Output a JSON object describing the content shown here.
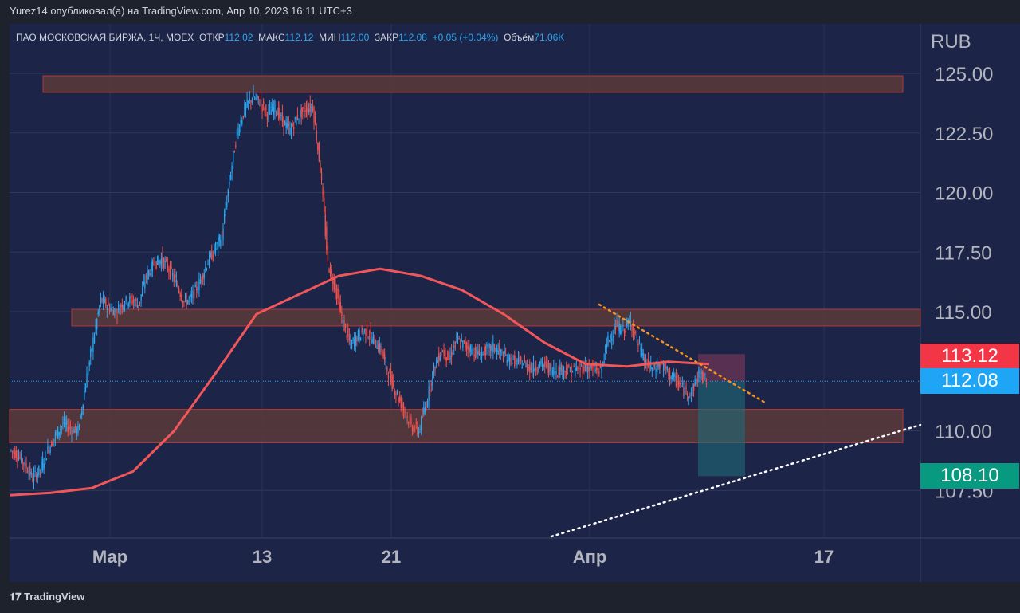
{
  "header": {
    "published": "Yurez14 опубликовал(а) на TradingView.com, Апр 10, 2023 16:11 UTC+3"
  },
  "legend": {
    "symbol": "ПАО МОСКОВСКАЯ БИРЖА, 1Ч, MOEX",
    "open_label": "ОТКР",
    "open": "112.02",
    "high_label": "МАКС",
    "high": "112.12",
    "low_label": "МИН",
    "low": "112.00",
    "close_label": "ЗАКР",
    "close": "112.08",
    "change": "+0.05 (+0.04%)",
    "volume_label": "Объём",
    "volume": "71.06K"
  },
  "footer": {
    "brand": "TradingView"
  },
  "colors": {
    "background": "#1e222d",
    "pane": "#1c2547",
    "up": "#2ca6f0",
    "down": "#ef5350",
    "ma": "#f0565a",
    "zone": "#5a3a3a",
    "trend_orange": "#f7931a",
    "trend_white": "#ffffff",
    "current_price": "#1fa5f5",
    "ma_label": "#f23645",
    "target_label": "#089981"
  },
  "chart_data": {
    "type": "candlestick",
    "currency": "RUB",
    "ylim": [
      106.4,
      126.5
    ],
    "y_ticks": [
      "125.00",
      "122.50",
      "120.00",
      "117.50",
      "115.00",
      "110.00",
      "107.50"
    ],
    "x_ticks": [
      "Мар",
      "13",
      "21",
      "Апр",
      "17"
    ],
    "closes": [
      109.2,
      109.0,
      108.6,
      108.0,
      108.4,
      109.2,
      109.8,
      110.3,
      110.1,
      110.0,
      112.0,
      113.8,
      115.5,
      115.2,
      115.0,
      115.4,
      115.5,
      115.3,
      116.5,
      117.0,
      117.2,
      116.8,
      116.2,
      115.4,
      115.6,
      116.2,
      117.0,
      117.6,
      118.2,
      120.5,
      122.5,
      123.5,
      124.0,
      123.8,
      123.3,
      123.6,
      123.0,
      122.6,
      123.2,
      123.5,
      123.6,
      121.0,
      117.0,
      116.0,
      114.5,
      113.6,
      114.0,
      114.2,
      113.8,
      113.4,
      112.4,
      111.6,
      110.9,
      110.2,
      110.0,
      111.2,
      112.6,
      113.4,
      113.0,
      113.8,
      113.6,
      113.4,
      113.2,
      113.4,
      113.5,
      113.2,
      113.0,
      112.9,
      112.8,
      112.6,
      112.8,
      112.7,
      112.5,
      112.6,
      112.5,
      112.6,
      112.7,
      112.6,
      112.5,
      113.8,
      114.4,
      114.2,
      114.6,
      113.6,
      112.8,
      112.6,
      112.8,
      112.4,
      112.1,
      111.7,
      111.6,
      112.4,
      112.1
    ],
    "ma": [
      107.3,
      107.4,
      107.6,
      108.3,
      110.0,
      112.4,
      114.9,
      115.7,
      116.5,
      116.8,
      116.5,
      115.9,
      114.9,
      113.7,
      112.8,
      112.7,
      112.9,
      112.8
    ],
    "zones": [
      {
        "from": 124.2,
        "to": 124.9
      },
      {
        "from": 114.4,
        "to": 115.1
      },
      {
        "from": 109.5,
        "to": 110.9
      }
    ],
    "position": {
      "entry": 112.08,
      "stop": 113.12,
      "target": 108.1
    },
    "last_price": "112.08",
    "ma_value": "113.12",
    "target_label": "108.10"
  }
}
